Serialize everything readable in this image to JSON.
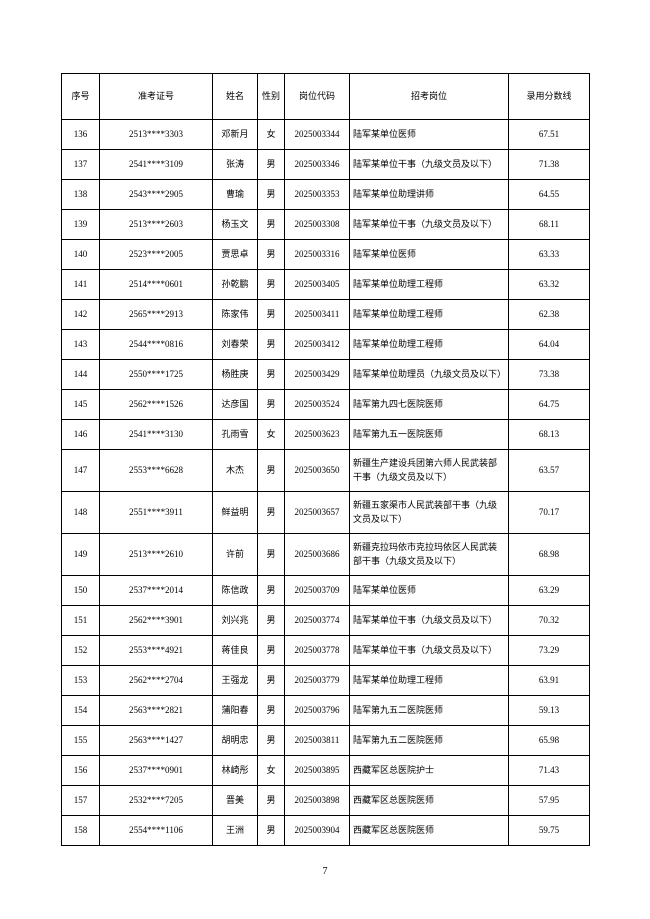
{
  "page_number": "7",
  "table": {
    "headers": [
      "序号",
      "准考证号",
      "姓名",
      "性别",
      "岗位代码",
      "招考岗位",
      "录用分数线"
    ],
    "rows": [
      [
        "136",
        "2513****3303",
        "邓新月",
        "女",
        "2025003344",
        "陆军某单位医师",
        "67.51"
      ],
      [
        "137",
        "2541****3109",
        "张涛",
        "男",
        "2025003346",
        "陆军某单位干事（九级文员及以下）",
        "71.38"
      ],
      [
        "138",
        "2543****2905",
        "曹瑜",
        "男",
        "2025003353",
        "陆军某单位助理讲师",
        "64.55"
      ],
      [
        "139",
        "2513****2603",
        "杨玉文",
        "男",
        "2025003308",
        "陆军某单位干事（九级文员及以下）",
        "68.11"
      ],
      [
        "140",
        "2523****2005",
        "贾思卓",
        "男",
        "2025003316",
        "陆军某单位医师",
        "63.33"
      ],
      [
        "141",
        "2514****0601",
        "孙乾鹏",
        "男",
        "2025003405",
        "陆军某单位助理工程师",
        "63.32"
      ],
      [
        "142",
        "2565****2913",
        "陈家伟",
        "男",
        "2025003411",
        "陆军某单位助理工程师",
        "62.38"
      ],
      [
        "143",
        "2544****0816",
        "刘春荣",
        "男",
        "2025003412",
        "陆军某单位助理工程师",
        "64.04"
      ],
      [
        "144",
        "2550****1725",
        "杨胜庚",
        "男",
        "2025003429",
        "陆军某单位助理员（九级文员及以下）",
        "73.38"
      ],
      [
        "145",
        "2562****1526",
        "达彦国",
        "男",
        "2025003524",
        "陆军第九四七医院医师",
        "64.75"
      ],
      [
        "146",
        "2541****3130",
        "孔雨雪",
        "女",
        "2025003623",
        "陆军第九五一医院医师",
        "68.13"
      ],
      [
        "147",
        "2553****6628",
        "木杰",
        "男",
        "2025003650",
        "新疆生产建设兵团第六师人民武装部干事（九级文员及以下）",
        "63.57"
      ],
      [
        "148",
        "2551****3911",
        "鲜益明",
        "男",
        "2025003657",
        "新疆五家渠市人民武装部干事（九级文员及以下）",
        "70.17"
      ],
      [
        "149",
        "2513****2610",
        "许前",
        "男",
        "2025003686",
        "新疆克拉玛依市克拉玛依区人民武装部干事（九级文员及以下）",
        "68.98"
      ],
      [
        "150",
        "2537****2014",
        "陈信政",
        "男",
        "2025003709",
        "陆军某单位医师",
        "63.29"
      ],
      [
        "151",
        "2562****3901",
        "刘兴兆",
        "男",
        "2025003774",
        "陆军某单位干事（九级文员及以下）",
        "70.32"
      ],
      [
        "152",
        "2553****4921",
        "蒋佳良",
        "男",
        "2025003778",
        "陆军某单位干事（九级文员及以下）",
        "73.29"
      ],
      [
        "153",
        "2562****2704",
        "王强龙",
        "男",
        "2025003779",
        "陆军某单位助理工程师",
        "63.91"
      ],
      [
        "154",
        "2563****2821",
        "蒲阳春",
        "男",
        "2025003796",
        "陆军第九五二医院医师",
        "59.13"
      ],
      [
        "155",
        "2563****1427",
        "胡明忠",
        "男",
        "2025003811",
        "陆军第九五二医院医师",
        "65.98"
      ],
      [
        "156",
        "2537****0901",
        "林崎彤",
        "女",
        "2025003895",
        "西藏军区总医院护士",
        "71.43"
      ],
      [
        "157",
        "2532****7205",
        "晋美",
        "男",
        "2025003898",
        "西藏军区总医院医师",
        "57.95"
      ],
      [
        "158",
        "2554****1106",
        "王洲",
        "男",
        "2025003904",
        "西藏军区总医院医师",
        "59.75"
      ]
    ]
  }
}
